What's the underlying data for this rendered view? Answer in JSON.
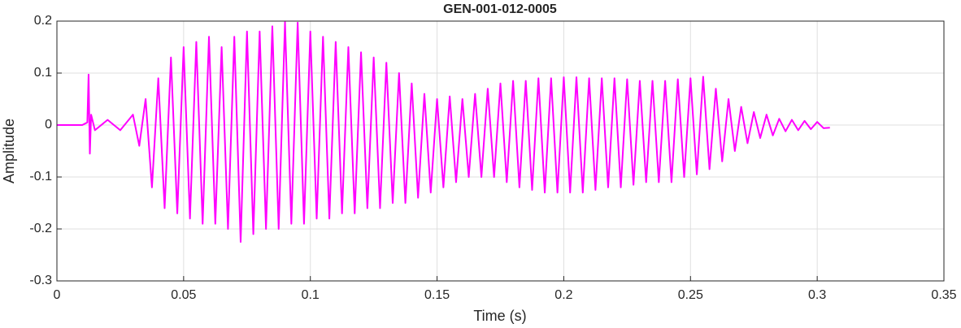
{
  "chart_data": {
    "type": "line",
    "title": "GEN-001-012-0005",
    "x_label": "Time (s)",
    "y_label": "Amplitude",
    "color": "#ff00ff",
    "grid": true,
    "xlim": [
      0,
      0.35
    ],
    "ylim": [
      -0.3,
      0.2
    ],
    "xticks": [
      0,
      0.05,
      0.1,
      0.15,
      0.2,
      0.25,
      0.3,
      0.35
    ],
    "yticks": [
      -0.3,
      -0.2,
      -0.1,
      0,
      0.1,
      0.2
    ],
    "x": [
      0,
      0.01,
      0.012,
      0.0125,
      0.013,
      0.0135,
      0.015,
      0.02,
      0.025,
      0.03,
      0.0325,
      0.035,
      0.0375,
      0.04,
      0.0425,
      0.045,
      0.0475,
      0.05,
      0.0525,
      0.055,
      0.0575,
      0.06,
      0.0625,
      0.065,
      0.0675,
      0.07,
      0.0725,
      0.075,
      0.0775,
      0.08,
      0.0825,
      0.085,
      0.0875,
      0.09,
      0.0925,
      0.095,
      0.0975,
      0.1,
      0.1025,
      0.105,
      0.1075,
      0.11,
      0.1125,
      0.115,
      0.1175,
      0.12,
      0.1225,
      0.125,
      0.1275,
      0.13,
      0.1325,
      0.135,
      0.1375,
      0.14,
      0.1425,
      0.145,
      0.1475,
      0.15,
      0.1525,
      0.155,
      0.1575,
      0.16,
      0.1625,
      0.165,
      0.1675,
      0.17,
      0.1725,
      0.175,
      0.1775,
      0.18,
      0.1825,
      0.185,
      0.1875,
      0.19,
      0.1925,
      0.195,
      0.1975,
      0.2,
      0.2025,
      0.205,
      0.2075,
      0.21,
      0.2125,
      0.215,
      0.2175,
      0.22,
      0.2225,
      0.225,
      0.2275,
      0.23,
      0.2325,
      0.235,
      0.2375,
      0.24,
      0.2425,
      0.245,
      0.2475,
      0.25,
      0.2525,
      0.255,
      0.2575,
      0.26,
      0.2625,
      0.265,
      0.2675,
      0.27,
      0.2725,
      0.275,
      0.2775,
      0.28,
      0.2825,
      0.285,
      0.2875,
      0.29,
      0.2925,
      0.295,
      0.2975,
      0.3,
      0.3025,
      0.305
    ],
    "values": [
      0,
      0,
      0.005,
      0.097,
      -0.055,
      0.02,
      -0.01,
      0.01,
      -0.01,
      0.02,
      -0.04,
      0.05,
      -0.12,
      0.09,
      -0.16,
      0.13,
      -0.17,
      0.15,
      -0.18,
      0.16,
      -0.19,
      0.17,
      -0.19,
      0.15,
      -0.2,
      0.17,
      -0.225,
      0.18,
      -0.21,
      0.18,
      -0.2,
      0.19,
      -0.2,
      0.198,
      -0.19,
      0.197,
      -0.19,
      0.18,
      -0.18,
      0.17,
      -0.18,
      0.16,
      -0.17,
      0.15,
      -0.17,
      0.14,
      -0.16,
      0.13,
      -0.16,
      0.12,
      -0.15,
      0.1,
      -0.15,
      0.08,
      -0.14,
      0.06,
      -0.13,
      0.05,
      -0.12,
      0.055,
      -0.11,
      0.05,
      -0.1,
      0.06,
      -0.1,
      0.07,
      -0.1,
      0.08,
      -0.11,
      0.085,
      -0.12,
      0.085,
      -0.125,
      0.09,
      -0.13,
      0.09,
      -0.13,
      0.092,
      -0.13,
      0.092,
      -0.13,
      0.09,
      -0.125,
      0.09,
      -0.12,
      0.09,
      -0.12,
      0.088,
      -0.115,
      0.085,
      -0.11,
      0.085,
      -0.11,
      0.085,
      -0.11,
      0.088,
      -0.1,
      0.09,
      -0.095,
      0.093,
      -0.085,
      0.07,
      -0.07,
      0.05,
      -0.05,
      0.035,
      -0.035,
      0.025,
      -0.025,
      0.02,
      -0.02,
      0.012,
      -0.012,
      0.01,
      -0.01,
      0.008,
      -0.008,
      0.006,
      -0.006,
      -0.005
    ]
  }
}
